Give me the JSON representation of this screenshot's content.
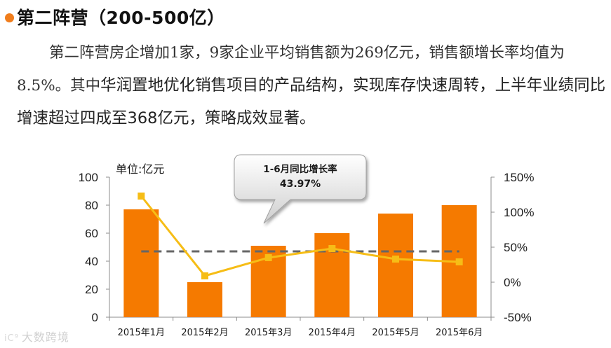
{
  "heading": "第二阵营（200-500亿）",
  "paragraph": {
    "part1": "第二阵营房企增加1家，9家企业平均销售额为269亿元，销售额增长率均值为8.5%。其中",
    "part2": "华润置地优化销售项目的产品结构，实现库存快速周转，上半年业绩同比增速超过四成至368亿元，策略成效显著。"
  },
  "watermark": {
    "mark": "iC⁹",
    "text": "大数跨境"
  },
  "chart_data": {
    "type": "bar",
    "categories": [
      "2015年1月",
      "2015年2月",
      "2015年3月",
      "2015年4月",
      "2015年5月",
      "2015年6月"
    ],
    "unit_label": "单位:亿元",
    "series": [
      {
        "values": [
          77,
          25,
          51,
          60,
          74,
          80
        ],
        "color": "#f57a00",
        "axis": "left",
        "kind": "bar"
      },
      {
        "values": [
          123,
          9,
          35,
          48,
          33,
          29
        ],
        "color": "#f6bd16",
        "axis": "right",
        "kind": "line"
      }
    ],
    "reference_line": {
      "value": 44,
      "axis": "right",
      "style": "dashed",
      "color": "#666666"
    },
    "y_left": {
      "lim": [
        0,
        100
      ],
      "ticks": [
        "0",
        "20",
        "40",
        "60",
        "80",
        "100"
      ]
    },
    "y_right": {
      "lim": [
        -50,
        150
      ],
      "ticks": [
        "-50%",
        "0%",
        "50%",
        "100%",
        "150%"
      ]
    },
    "callout": {
      "line1": "1-6月同比增长率",
      "line2": "43.97%"
    },
    "grid": false
  }
}
